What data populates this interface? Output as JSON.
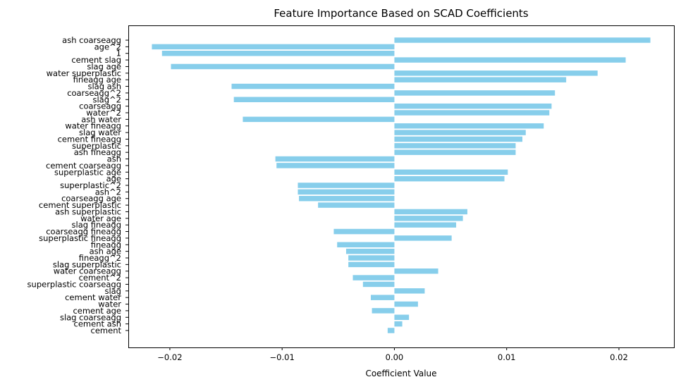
{
  "chart_data": {
    "type": "bar",
    "orientation": "horizontal",
    "title": "Feature Importance Based on SCAD Coefficients",
    "xlabel": "Coefficient Value",
    "ylabel": "",
    "xlim": [
      -0.0237,
      0.0249
    ],
    "xticks": [
      -0.02,
      -0.01,
      0.0,
      0.01,
      0.02
    ],
    "xtick_labels": [
      "−0.02",
      "−0.01",
      "0.00",
      "0.01",
      "0.02"
    ],
    "grid": false,
    "bar_color": "#87ceeb",
    "categories": [
      "ash coarseagg",
      "age^2",
      "1",
      "cement slag",
      "slag age",
      "water superplastic",
      "fineagg age",
      "slag ash",
      "coarseagg^2",
      "slag^2",
      "coarseagg",
      "water^2",
      "ash water",
      "water fineagg",
      "slag water",
      "cement fineagg",
      "superplastic",
      "ash fineagg",
      "ash",
      "cement coarseagg",
      "superplastic age",
      "age",
      "superplastic^2",
      "ash^2",
      "coarseagg age",
      "cement superplastic",
      "ash superplastic",
      "water age",
      "slag fineagg",
      "coarseagg fineagg",
      "superplastic fineagg",
      "fineagg",
      "ash age",
      "fineagg^2",
      "slag superplastic",
      "water coarseagg",
      "cement^2",
      "superplastic coarseagg",
      "slag",
      "cement water",
      "water",
      "cement age",
      "slag coarseagg",
      "cement ash",
      "cement"
    ],
    "values": [
      0.0228,
      -0.0216,
      -0.0207,
      0.0206,
      -0.0199,
      0.0181,
      0.0153,
      -0.0145,
      0.0143,
      -0.0143,
      0.014,
      0.0138,
      -0.0135,
      0.0133,
      0.0117,
      0.0114,
      0.0108,
      0.0108,
      -0.0106,
      -0.0105,
      0.0101,
      0.0098,
      -0.0086,
      -0.0086,
      -0.0085,
      -0.0068,
      0.0065,
      0.0061,
      0.0055,
      -0.0054,
      0.0051,
      -0.0051,
      -0.0043,
      -0.0041,
      -0.0041,
      0.0039,
      -0.0037,
      -0.0028,
      0.0027,
      -0.0021,
      0.0021,
      -0.002,
      0.0013,
      0.0007,
      -0.0006
    ]
  }
}
